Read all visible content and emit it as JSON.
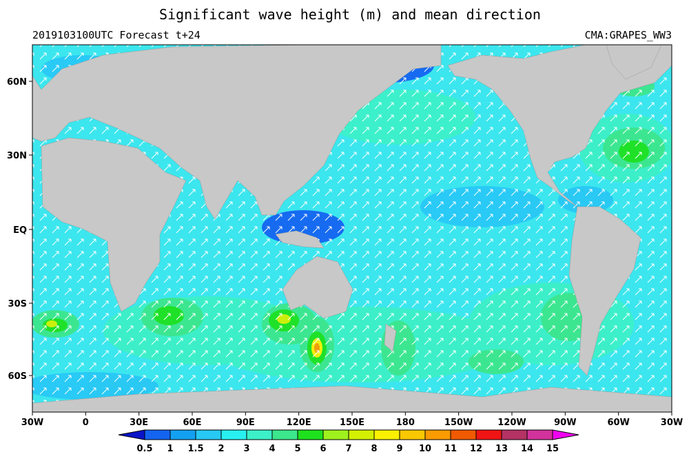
{
  "title": "Significant wave height (m) and mean direction",
  "subtitle_left": "2019103100UTC Forecast t+24",
  "subtitle_right": "CMA:GRAPES_WW3",
  "map": {
    "lon_ticks": [
      "30W",
      "0",
      "30E",
      "60E",
      "90E",
      "120E",
      "150E",
      "180",
      "150W",
      "120W",
      "90W",
      "60W",
      "30W"
    ],
    "lat_ticks": [
      "60N",
      "30N",
      "EQ",
      "30S",
      "60S"
    ]
  },
  "colorbar": {
    "levels": [
      0.5,
      1,
      1.5,
      2,
      3,
      4,
      5,
      6,
      7,
      8,
      9,
      10,
      11,
      12,
      13,
      14,
      15
    ],
    "colors": [
      "#0a14c8",
      "#1464f0",
      "#14a0f0",
      "#28c8f5",
      "#28f0f0",
      "#3cf0c8",
      "#3ce68c",
      "#1ee11e",
      "#a0f01e",
      "#d2f000",
      "#faf000",
      "#fac800",
      "#fa9b00",
      "#f05a00",
      "#f01414",
      "#b43264",
      "#d2329b",
      "#f000f0"
    ]
  }
}
